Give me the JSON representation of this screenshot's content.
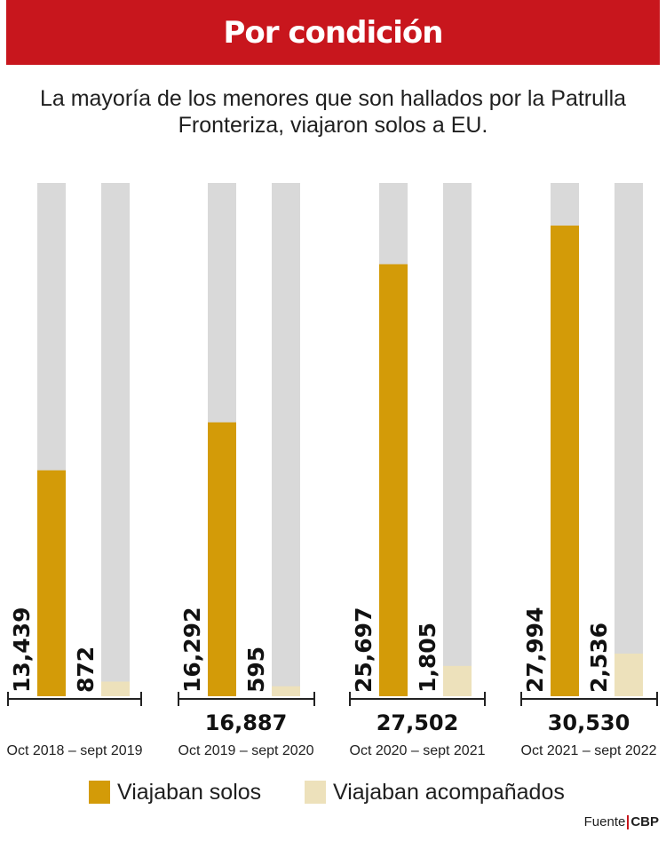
{
  "title": "Por condición",
  "subtitle": "La mayoría de los menores que son hallados por la Patrulla Fronteriza, viajaron solos a EU.",
  "colors": {
    "banner": "#c8161d",
    "solos": "#d39b08",
    "acompanados": "#ede1bb",
    "background_bar": "#d9d9d9"
  },
  "legend": {
    "solos": "Viajaban solos",
    "acompanados": "Viajaban acompañados"
  },
  "source": {
    "label": "Fuente",
    "org": "CBP"
  },
  "chart_data": {
    "type": "bar",
    "categories": [
      "Oct 2018 – sept 2019",
      "Oct 2019 – sept 2020",
      "Oct 2020 – sept 2021",
      "Oct 2021 – sept 2022"
    ],
    "series": [
      {
        "name": "Viajaban solos",
        "values": [
          13439,
          16292,
          25697,
          27994
        ],
        "labels": [
          "13,439",
          "16,292",
          "25,697",
          "27,994"
        ]
      },
      {
        "name": "Viajaban acompañados",
        "values": [
          872,
          595,
          1805,
          2536
        ],
        "labels": [
          "872",
          "595",
          "1,805",
          "2,536"
        ]
      }
    ],
    "totals": [
      "",
      "16,887",
      "27,502",
      "30,530"
    ],
    "ylim": [
      0,
      30530
    ]
  }
}
